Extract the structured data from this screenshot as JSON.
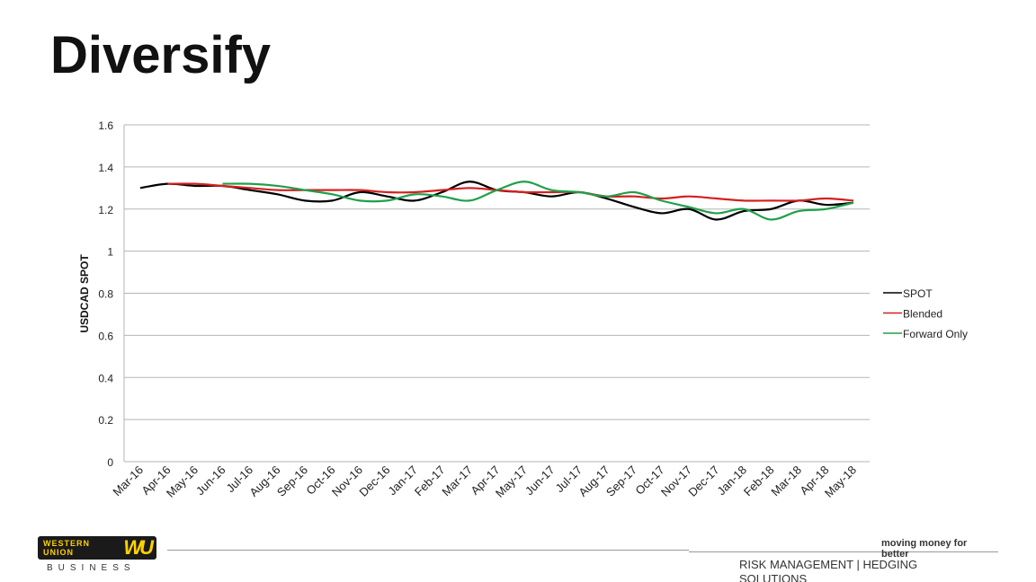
{
  "page": {
    "title": "Diversify",
    "tagline": "moving money for better",
    "footer_text": "RISK MANAGEMENT | HEDGING SOLUTIONS",
    "logo": {
      "line1": "WESTERN",
      "line2": "UNION",
      "mark": "WU",
      "sub": "BUSINESS"
    }
  },
  "chart_data": {
    "type": "line",
    "title": "",
    "xlabel": "",
    "ylabel": "USDCAD SPOT",
    "ylim": [
      0,
      1.6
    ],
    "yticks": [
      0,
      0.2,
      0.4,
      0.6,
      0.8,
      1,
      1.2,
      1.4,
      1.6
    ],
    "ytick_labels": [
      "0",
      "0.2",
      "0.4",
      "0.6",
      "0.8",
      "1",
      "1.2",
      "1.4",
      "1.6"
    ],
    "grid": true,
    "legend_position": "right",
    "categories": [
      "Mar-16",
      "Apr-16",
      "May-16",
      "Jun-16",
      "Jul-16",
      "Aug-16",
      "Sep-16",
      "Oct-16",
      "Nov-16",
      "Dec-16",
      "Jan-17",
      "Feb-17",
      "Mar-17",
      "Apr-17",
      "May-17",
      "Jun-17",
      "Jul-17",
      "Aug-17",
      "Sep-17",
      "Oct-17",
      "Nov-17",
      "Dec-17",
      "Jan-18",
      "Feb-18",
      "Mar-18",
      "Apr-18",
      "May-18"
    ],
    "series": [
      {
        "name": "SPOT",
        "color": "#000000",
        "values": [
          1.3,
          1.32,
          1.31,
          1.31,
          1.29,
          1.27,
          1.24,
          1.24,
          1.28,
          1.26,
          1.24,
          1.28,
          1.33,
          1.29,
          1.28,
          1.26,
          1.28,
          1.25,
          1.21,
          1.18,
          1.2,
          1.15,
          1.19,
          1.2,
          1.24,
          1.22,
          1.23
        ]
      },
      {
        "name": "Blended",
        "color": "#d42020",
        "values": [
          null,
          1.32,
          1.32,
          1.31,
          1.3,
          1.29,
          1.29,
          1.29,
          1.29,
          1.28,
          1.28,
          1.29,
          1.3,
          1.29,
          1.28,
          1.28,
          1.28,
          1.26,
          1.26,
          1.25,
          1.26,
          1.25,
          1.24,
          1.24,
          1.24,
          1.25,
          1.24
        ]
      },
      {
        "name": "Forward Only",
        "color": "#1fa04a",
        "values": [
          null,
          null,
          null,
          1.32,
          1.32,
          1.31,
          1.29,
          1.27,
          1.24,
          1.24,
          1.27,
          1.26,
          1.24,
          1.29,
          1.33,
          1.29,
          1.28,
          1.26,
          1.28,
          1.24,
          1.21,
          1.18,
          1.2,
          1.15,
          1.19,
          1.2,
          1.23
        ]
      }
    ]
  }
}
